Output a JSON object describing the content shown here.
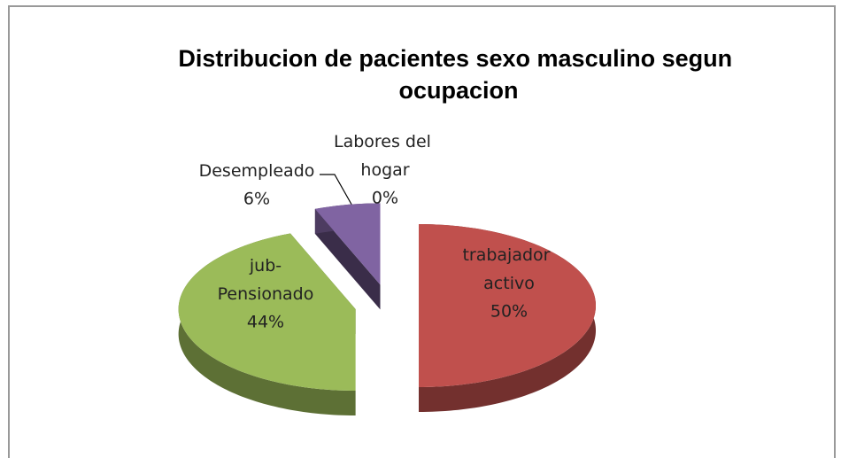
{
  "chart_data": {
    "type": "pie3d",
    "title": "Distribucion de pacientes sexo masculino segun ocupacion",
    "categories": [
      "Labores del hogar",
      "trabajador activo",
      "jub-Pensionado",
      "Desempleado"
    ],
    "values": [
      0,
      50,
      44,
      6
    ],
    "value_labels": [
      "0%",
      "50%",
      "44%",
      "6%"
    ],
    "colors": [
      "#4f81bd",
      "#c0504d",
      "#9bbb59",
      "#8064a2"
    ]
  }
}
